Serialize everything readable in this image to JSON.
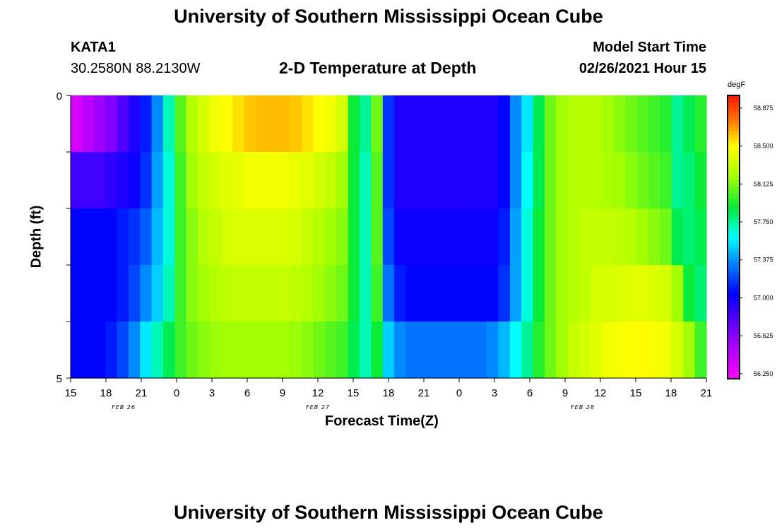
{
  "header": {
    "title_top": "University of Southern Mississippi Ocean Cube",
    "station": "KATA1",
    "coords": "30.2580N 88.2130W",
    "plot_title": "2-D Temperature at Depth",
    "model_label": "Model Start Time",
    "model_time": "02/26/2021 Hour 15",
    "title_bottom": "University of Southern Mississippi Ocean Cube"
  },
  "colorbar": {
    "unit": "degF",
    "ticks": [
      "58.875",
      "58.500",
      "58.125",
      "57.750",
      "57.375",
      "57.000",
      "56.625",
      "56.250"
    ],
    "vmin": 56.2,
    "vmax": 59.0
  },
  "chart_data": {
    "type": "heatmap",
    "title": "2-D Temperature at Depth",
    "xlabel": "Forecast Time(Z)",
    "ylabel": "Depth (ft)",
    "x_tick_labels": [
      "15",
      "18",
      "21",
      "0",
      "3",
      "6",
      "9",
      "12",
      "15",
      "18",
      "21",
      "0",
      "3",
      "6",
      "9",
      "12",
      "15",
      "18",
      "21"
    ],
    "date_labels": [
      "FEB 26",
      "FEB 27",
      "FEB 28"
    ],
    "y_tick_labels": [
      "0",
      "5"
    ],
    "xlim_hours": [
      0,
      54
    ],
    "depth_rows": 5,
    "columns_per_row": 55,
    "units": "degF",
    "rows": [
      [
        56.35,
        56.45,
        56.55,
        56.65,
        56.8,
        56.95,
        57.1,
        57.35,
        57.7,
        58.05,
        58.25,
        58.35,
        58.45,
        58.5,
        58.55,
        58.6,
        58.62,
        58.62,
        58.62,
        58.6,
        58.55,
        58.5,
        58.45,
        58.35,
        57.9,
        57.75,
        58.1,
        57.15,
        56.95,
        56.95,
        56.95,
        56.95,
        56.95,
        56.95,
        56.95,
        56.95,
        56.95,
        57.05,
        57.35,
        57.55,
        57.85,
        58.1,
        58.2,
        58.25,
        58.25,
        58.25,
        58.2,
        58.15,
        58.1,
        58.05,
        58.0,
        57.95,
        57.75,
        57.85,
        57.95
      ],
      [
        56.85,
        56.85,
        56.85,
        56.9,
        56.95,
        57.0,
        57.15,
        57.4,
        57.65,
        58.0,
        58.2,
        58.3,
        58.35,
        58.4,
        58.42,
        58.45,
        58.45,
        58.45,
        58.45,
        58.42,
        58.4,
        58.35,
        58.3,
        58.2,
        57.9,
        57.7,
        58.05,
        57.15,
        56.95,
        56.95,
        56.95,
        56.95,
        56.95,
        56.95,
        56.95,
        56.95,
        56.95,
        57.05,
        57.35,
        57.6,
        57.85,
        58.1,
        58.2,
        58.25,
        58.25,
        58.25,
        58.22,
        58.2,
        58.15,
        58.1,
        58.05,
        58.0,
        57.75,
        57.8,
        57.9
      ],
      [
        57.05,
        57.05,
        57.05,
        57.05,
        57.1,
        57.15,
        57.25,
        57.45,
        57.65,
        58.0,
        58.15,
        58.25,
        58.3,
        58.35,
        58.37,
        58.38,
        58.38,
        58.38,
        58.38,
        58.35,
        58.3,
        58.25,
        58.2,
        58.15,
        57.9,
        57.7,
        58.05,
        57.2,
        57.0,
        57.0,
        57.0,
        57.0,
        57.0,
        57.0,
        57.0,
        57.0,
        57.0,
        57.1,
        57.4,
        57.65,
        57.9,
        58.1,
        58.2,
        58.25,
        58.3,
        58.3,
        58.3,
        58.28,
        58.25,
        58.2,
        58.15,
        58.1,
        57.85,
        57.8,
        57.85
      ],
      [
        57.05,
        57.05,
        57.05,
        57.05,
        57.1,
        57.2,
        57.35,
        57.5,
        57.7,
        58.0,
        58.15,
        58.2,
        58.25,
        58.28,
        58.3,
        58.3,
        58.3,
        58.3,
        58.3,
        58.28,
        58.25,
        58.2,
        58.15,
        58.1,
        57.9,
        57.7,
        58.0,
        57.3,
        57.1,
        57.05,
        57.05,
        57.05,
        57.05,
        57.05,
        57.05,
        57.05,
        57.05,
        57.15,
        57.4,
        57.65,
        57.9,
        58.1,
        58.2,
        58.25,
        58.3,
        58.35,
        58.35,
        58.38,
        58.4,
        58.4,
        58.38,
        58.35,
        58.2,
        57.9,
        57.8
      ],
      [
        57.05,
        57.05,
        57.05,
        57.1,
        57.2,
        57.35,
        57.55,
        57.7,
        57.85,
        58.0,
        58.1,
        58.15,
        58.18,
        58.2,
        58.2,
        58.2,
        58.2,
        58.2,
        58.2,
        58.18,
        58.15,
        58.1,
        58.05,
        58.0,
        57.85,
        57.7,
        57.9,
        57.5,
        57.35,
        57.3,
        57.3,
        57.3,
        57.3,
        57.3,
        57.3,
        57.3,
        57.35,
        57.45,
        57.6,
        57.75,
        57.95,
        58.1,
        58.2,
        58.3,
        58.35,
        58.4,
        58.45,
        58.48,
        58.5,
        58.5,
        58.48,
        58.45,
        58.35,
        58.2,
        58.0
      ]
    ]
  }
}
